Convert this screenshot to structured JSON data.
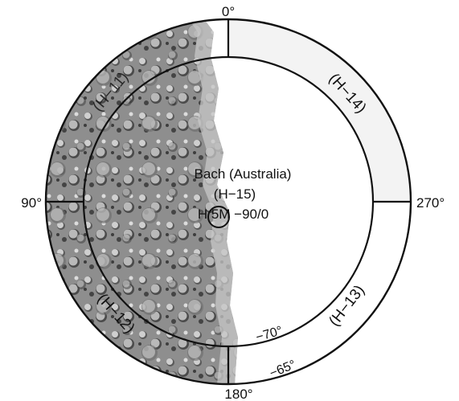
{
  "map": {
    "longitude_labels": {
      "top": "0°",
      "left": "90°",
      "right": "270°",
      "bottom": "180°"
    },
    "latitude_labels": {
      "inner": "−70°",
      "outer": "−65°"
    },
    "quadrangles": {
      "upper_right": "(H−14)",
      "lower_right": "(H−13)",
      "lower_left": "(H−12)",
      "upper_left": "(H−11)"
    },
    "center": {
      "name": "Bach (Australia)",
      "code": "(H−15)",
      "id": "H 5M −90/0"
    }
  }
}
